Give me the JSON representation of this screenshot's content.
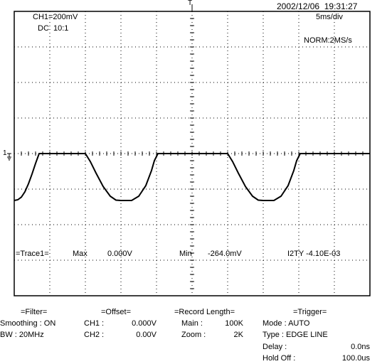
{
  "header": {
    "datetime": "2002/12/06  19:31:27",
    "channel": "CH1=200mV",
    "coupling": "DC  10:1",
    "timebase": "5ms/div",
    "acq_mode": "NORM:2MS/s",
    "trigger_pos_marker": "T",
    "ground_marker": "1"
  },
  "measure": {
    "trace": "=Trace1=",
    "max_label": "Max",
    "max_value": "0.000V",
    "min_label": "Min",
    "min_value": "-264.0mV",
    "extra": "I2TY -4.10E-03"
  },
  "settings": {
    "filter": {
      "title": "=Filter=",
      "smoothing_label": "Smoothing : ON",
      "bw_label": "BW : 20MHz"
    },
    "offset": {
      "title": "=Offset=",
      "ch1_label": "CH1 :",
      "ch1_value": "0.000V",
      "ch2_label": "CH2 :",
      "ch2_value": "0.00V"
    },
    "record": {
      "title": "=Record Length=",
      "main_label": "Main :",
      "main_value": "100K",
      "zoom_label": "Zoom :",
      "zoom_value": "2K"
    },
    "trigger": {
      "title": "=Trigger=",
      "mode": "Mode : AUTO",
      "type": "Type : EDGE LINE",
      "delay_label": "Delay :",
      "delay_value": "0.0ns",
      "holdoff_label": "Hold Off :",
      "holdoff_value": "100.0us"
    }
  },
  "chart_data": {
    "type": "line",
    "xlabel": "",
    "ylabel": "",
    "x_unit": "ms",
    "y_unit": "mV",
    "xlim": [
      0,
      50
    ],
    "ylim": [
      -800,
      800
    ],
    "grid": true,
    "series": [
      {
        "x": [
          0,
          0.5,
          1.0,
          1.5,
          2.0,
          2.5,
          3.0,
          3.5,
          4.5,
          10.0,
          10.7,
          11.5,
          12.5,
          13.5,
          14.3,
          15.0,
          16.5,
          17.5,
          18.5,
          19.3,
          19.7,
          20.2,
          25.0,
          30.0,
          30.7,
          31.5,
          32.5,
          33.5,
          34.3,
          35.0,
          36.5,
          37.5,
          38.5,
          39.3,
          39.7,
          40.2,
          45.0,
          50.0
        ],
        "y": [
          -264,
          -260,
          -245,
          -215,
          -170,
          -115,
          -55,
          0,
          0,
          0,
          -45,
          -110,
          -185,
          -240,
          -262,
          -264,
          -264,
          -240,
          -180,
          -95,
          -40,
          0,
          0,
          0,
          -45,
          -110,
          -185,
          -240,
          -262,
          -264,
          -264,
          -240,
          -180,
          -95,
          -40,
          0,
          0,
          0
        ]
      }
    ]
  }
}
